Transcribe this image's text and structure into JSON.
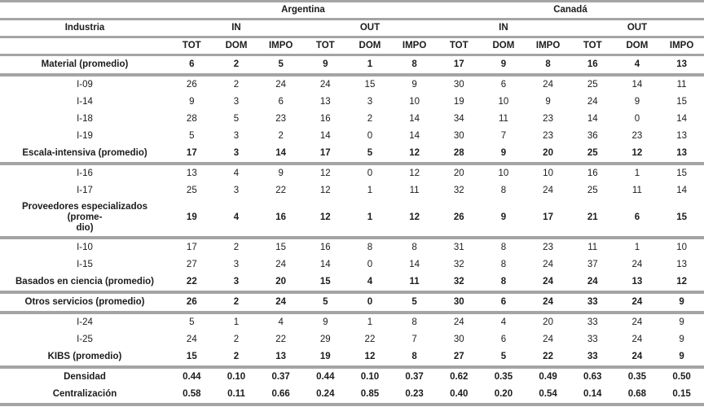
{
  "table": {
    "industry_col_header": "Industria",
    "country_headers": [
      {
        "label": "Argentina",
        "span": 6
      },
      {
        "label": "Canadá",
        "span": 6
      }
    ],
    "direction_headers": [
      {
        "label": "IN",
        "span": 3
      },
      {
        "label": "OUT",
        "span": 3
      },
      {
        "label": "IN",
        "span": 3
      },
      {
        "label": "OUT",
        "span": 3
      }
    ],
    "measure_headers": [
      "TOT",
      "DOM",
      "IMPO",
      "TOT",
      "DOM",
      "IMPO",
      "TOT",
      "DOM",
      "IMPO",
      "TOT",
      "DOM",
      "IMPO"
    ],
    "rows": [
      {
        "label": "Material (promedio)",
        "emphasis": true,
        "sep": "thick",
        "values": [
          "6",
          "2",
          "5",
          "9",
          "1",
          "8",
          "17",
          "9",
          "8",
          "16",
          "4",
          "13"
        ]
      },
      {
        "label": "I-09",
        "emphasis": false,
        "sep": "none",
        "values": [
          "26",
          "2",
          "24",
          "24",
          "15",
          "9",
          "30",
          "6",
          "24",
          "25",
          "14",
          "11"
        ]
      },
      {
        "label": "I-14",
        "emphasis": false,
        "sep": "none",
        "values": [
          "9",
          "3",
          "6",
          "13",
          "3",
          "10",
          "19",
          "10",
          "9",
          "24",
          "9",
          "15"
        ]
      },
      {
        "label": "I-18",
        "emphasis": false,
        "sep": "none",
        "values": [
          "28",
          "5",
          "23",
          "16",
          "2",
          "14",
          "34",
          "11",
          "23",
          "14",
          "0",
          "14"
        ]
      },
      {
        "label": "I-19",
        "emphasis": false,
        "sep": "none",
        "values": [
          "5",
          "3",
          "2",
          "14",
          "0",
          "14",
          "30",
          "7",
          "23",
          "36",
          "23",
          "13"
        ]
      },
      {
        "label": "Escala-intensiva (promedio)",
        "emphasis": true,
        "sep": "thick",
        "values": [
          "17",
          "3",
          "14",
          "17",
          "5",
          "12",
          "28",
          "9",
          "20",
          "25",
          "12",
          "13"
        ]
      },
      {
        "label": "I-16",
        "emphasis": false,
        "sep": "none",
        "values": [
          "13",
          "4",
          "9",
          "12",
          "0",
          "12",
          "20",
          "10",
          "10",
          "16",
          "1",
          "15"
        ]
      },
      {
        "label": "I-17",
        "emphasis": false,
        "sep": "none",
        "values": [
          "25",
          "3",
          "22",
          "12",
          "1",
          "11",
          "32",
          "8",
          "24",
          "25",
          "11",
          "14"
        ]
      },
      {
        "label": "Proveedores especializados (promedio)",
        "label_display": "Proveedores especializados (prome-\ndio)",
        "emphasis": true,
        "sep": "thick",
        "values": [
          "19",
          "4",
          "16",
          "12",
          "1",
          "12",
          "26",
          "9",
          "17",
          "21",
          "6",
          "15"
        ]
      },
      {
        "label": "I-10",
        "emphasis": false,
        "sep": "none",
        "values": [
          "17",
          "2",
          "15",
          "16",
          "8",
          "8",
          "31",
          "8",
          "23",
          "11",
          "1",
          "10"
        ]
      },
      {
        "label": "I-15",
        "emphasis": false,
        "sep": "none",
        "values": [
          "27",
          "3",
          "24",
          "14",
          "0",
          "14",
          "32",
          "8",
          "24",
          "37",
          "24",
          "13"
        ]
      },
      {
        "label": "Basados en ciencia (promedio)",
        "emphasis": true,
        "sep": "thick",
        "values": [
          "22",
          "3",
          "20",
          "15",
          "4",
          "11",
          "32",
          "8",
          "24",
          "24",
          "13",
          "12"
        ]
      },
      {
        "label": "Otros servicios (promedio)",
        "emphasis": true,
        "sep": "thick",
        "values": [
          "26",
          "2",
          "24",
          "5",
          "0",
          "5",
          "30",
          "6",
          "24",
          "33",
          "24",
          "9"
        ]
      },
      {
        "label": "I-24",
        "emphasis": false,
        "sep": "none",
        "values": [
          "5",
          "1",
          "4",
          "9",
          "1",
          "8",
          "24",
          "4",
          "20",
          "33",
          "24",
          "9"
        ]
      },
      {
        "label": "I-25",
        "emphasis": false,
        "sep": "none",
        "values": [
          "24",
          "2",
          "22",
          "29",
          "22",
          "7",
          "30",
          "6",
          "24",
          "33",
          "24",
          "9"
        ]
      },
      {
        "label": "KIBS (promedio)",
        "emphasis": true,
        "sep": "thick",
        "values": [
          "15",
          "2",
          "13",
          "19",
          "12",
          "8",
          "27",
          "5",
          "22",
          "33",
          "24",
          "9"
        ]
      },
      {
        "label": "Densidad",
        "emphasis": true,
        "sep": "none",
        "values": [
          "0.44",
          "0.10",
          "0.37",
          "0.44",
          "0.10",
          "0.37",
          "0.62",
          "0.35",
          "0.49",
          "0.63",
          "0.35",
          "0.50"
        ]
      },
      {
        "label": "Centralización",
        "emphasis": true,
        "sep": "none",
        "values": [
          "0.58",
          "0.11",
          "0.66",
          "0.24",
          "0.85",
          "0.23",
          "0.40",
          "0.20",
          "0.54",
          "0.14",
          "0.68",
          "0.15"
        ]
      }
    ],
    "colors": {
      "rule_gray": "#a4a4a4",
      "text": "#1c1c1c",
      "background": "#ffffff"
    }
  }
}
